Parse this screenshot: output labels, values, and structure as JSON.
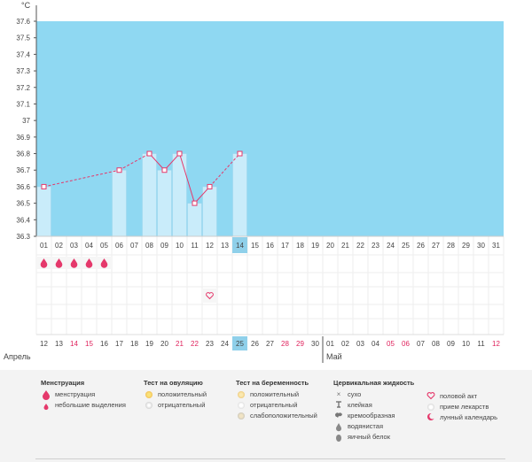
{
  "chart_data": {
    "type": "bar",
    "ylabel": "°C",
    "ylim": [
      36.3,
      37.6
    ],
    "yticks": [
      "37.6",
      "37.5",
      "37.4",
      "37.3",
      "37.2",
      "37.1",
      "37",
      "36.9",
      "36.8",
      "36.7",
      "36.6",
      "36.5",
      "36.4",
      "36.3"
    ],
    "cycle_days": [
      "01",
      "02",
      "03",
      "04",
      "05",
      "06",
      "07",
      "08",
      "09",
      "10",
      "11",
      "12",
      "13",
      "14",
      "15",
      "16",
      "17",
      "18",
      "19",
      "20",
      "21",
      "22",
      "23",
      "24",
      "25",
      "26",
      "27",
      "28",
      "29",
      "30",
      "31"
    ],
    "highlighted_cycle_day": "14",
    "temperatures": [
      {
        "day": 1,
        "value": 36.6
      },
      {
        "day": 6,
        "value": 36.7
      },
      {
        "day": 8,
        "value": 36.8
      },
      {
        "day": 9,
        "value": 36.7
      },
      {
        "day": 10,
        "value": 36.8
      },
      {
        "day": 11,
        "value": 36.5
      },
      {
        "day": 12,
        "value": 36.6
      },
      {
        "day": 14,
        "value": 36.8
      }
    ],
    "menstruation_days": [
      1,
      2,
      3,
      4,
      5
    ],
    "spotting_days": [],
    "intercourse_days": [
      12
    ]
  },
  "calendar": {
    "dates": [
      {
        "label": "12",
        "red": false
      },
      {
        "label": "13",
        "red": false
      },
      {
        "label": "14",
        "red": true
      },
      {
        "label": "15",
        "red": true
      },
      {
        "label": "16",
        "red": false
      },
      {
        "label": "17",
        "red": false
      },
      {
        "label": "18",
        "red": false
      },
      {
        "label": "19",
        "red": false
      },
      {
        "label": "20",
        "red": false
      },
      {
        "label": "21",
        "red": true
      },
      {
        "label": "22",
        "red": true
      },
      {
        "label": "23",
        "red": false
      },
      {
        "label": "24",
        "red": false
      },
      {
        "label": "25",
        "red": false,
        "highlighted": true
      },
      {
        "label": "26",
        "red": false
      },
      {
        "label": "27",
        "red": false
      },
      {
        "label": "28",
        "red": true
      },
      {
        "label": "29",
        "red": true
      },
      {
        "label": "30",
        "red": false
      },
      {
        "label": "01",
        "red": false
      },
      {
        "label": "02",
        "red": false
      },
      {
        "label": "03",
        "red": false
      },
      {
        "label": "04",
        "red": false
      },
      {
        "label": "05",
        "red": true
      },
      {
        "label": "06",
        "red": true
      },
      {
        "label": "07",
        "red": false
      },
      {
        "label": "08",
        "red": false
      },
      {
        "label": "09",
        "red": false
      },
      {
        "label": "10",
        "red": false
      },
      {
        "label": "11",
        "red": false
      },
      {
        "label": "12",
        "red": true
      }
    ],
    "month_april": "Апрель",
    "month_may": "Май"
  },
  "colors": {
    "band": "#8fd8f2",
    "bar": "#c9ecfa",
    "bar_edge": "#9ad4ec",
    "line": "#e5386b",
    "highlight": "#8fd0ea",
    "red_text": "#e0245e"
  },
  "legend": {
    "menstruation": {
      "title": "Менструация",
      "items": [
        {
          "label": "менструация",
          "icon": "drop-icon"
        },
        {
          "label": "небольшие выделения",
          "icon": "small-drop-icon"
        }
      ]
    },
    "ovulation_test": {
      "title": "Тест на овуляцию",
      "items": [
        {
          "label": "положительный",
          "icon": "ovulation-positive-icon"
        },
        {
          "label": "отрицательный",
          "icon": "ovulation-negative-icon"
        }
      ]
    },
    "pregnancy_test": {
      "title": "Тест на беременность",
      "items": [
        {
          "label": "положительный",
          "icon": "pregnancy-positive-icon"
        },
        {
          "label": "отрицательный",
          "icon": "pregnancy-negative-icon"
        },
        {
          "label": "слабоположительный",
          "icon": "pregnancy-weak-icon"
        }
      ]
    },
    "cervical": {
      "title": "Цервикальная жидкость",
      "items": [
        {
          "label": "сухо",
          "icon": "dry-icon"
        },
        {
          "label": "клейкая",
          "icon": "sticky-icon"
        },
        {
          "label": "кремообразная",
          "icon": "creamy-icon"
        },
        {
          "label": "водянистая",
          "icon": "watery-icon"
        },
        {
          "label": "яичный белок",
          "icon": "egg-white-icon"
        }
      ]
    },
    "other": {
      "items": [
        {
          "label": "половой акт",
          "icon": "heart-icon"
        },
        {
          "label": "прием лекарств",
          "icon": "pill-icon"
        },
        {
          "label": "лунный календарь",
          "icon": "moon-icon"
        }
      ]
    }
  }
}
